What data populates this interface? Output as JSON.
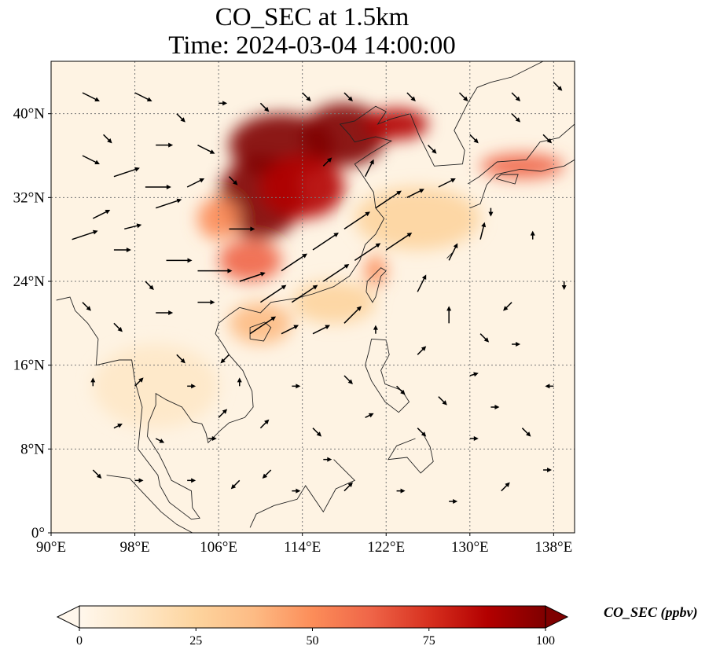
{
  "title": {
    "line1": "CO_SEC at 1.5km",
    "line2": "Time: 2024-03-04 14:00:00"
  },
  "map": {
    "extent": {
      "lon_min": 90,
      "lon_max": 140,
      "lat_min": 0,
      "lat_max": 45
    },
    "lon_ticks": [
      {
        "value": 90,
        "label": "90°E"
      },
      {
        "value": 98,
        "label": "98°E"
      },
      {
        "value": 106,
        "label": "106°E"
      },
      {
        "value": 114,
        "label": "114°E"
      },
      {
        "value": 122,
        "label": "122°E"
      },
      {
        "value": 130,
        "label": "130°E"
      },
      {
        "value": 138,
        "label": "138°E"
      }
    ],
    "lat_ticks": [
      {
        "value": 0,
        "label": "0°"
      },
      {
        "value": 8,
        "label": "8°N"
      },
      {
        "value": 16,
        "label": "16°N"
      },
      {
        "value": 24,
        "label": "24°N"
      },
      {
        "value": 32,
        "label": "32°N"
      },
      {
        "value": 40,
        "label": "40°N"
      }
    ],
    "gridlines": true,
    "field": "CO_SEC",
    "plumes": [
      {
        "lon": 112,
        "lat": 37,
        "value": 100,
        "spread_lon": 5,
        "spread_lat": 3
      },
      {
        "lon": 118,
        "lat": 38,
        "value": 100,
        "spread_lon": 4,
        "spread_lat": 3
      },
      {
        "lon": 110,
        "lat": 32,
        "value": 95,
        "spread_lon": 4,
        "spread_lat": 4
      },
      {
        "lon": 114,
        "lat": 33,
        "value": 90,
        "spread_lon": 4,
        "spread_lat": 3
      },
      {
        "lon": 123,
        "lat": 39,
        "value": 85,
        "spread_lon": 3,
        "spread_lat": 1.5
      },
      {
        "lon": 106,
        "lat": 30,
        "value": 55,
        "spread_lon": 2,
        "spread_lat": 2
      },
      {
        "lon": 109,
        "lat": 26,
        "value": 60,
        "spread_lon": 3,
        "spread_lat": 2
      },
      {
        "lon": 110,
        "lat": 20,
        "value": 40,
        "spread_lon": 3,
        "spread_lat": 2
      },
      {
        "lon": 135,
        "lat": 35,
        "value": 65,
        "spread_lon": 4,
        "spread_lat": 1.2
      },
      {
        "lon": 121,
        "lat": 25,
        "value": 50,
        "spread_lon": 1,
        "spread_lat": 1.5
      },
      {
        "lon": 125,
        "lat": 30,
        "value": 25,
        "spread_lon": 6,
        "spread_lat": 3
      },
      {
        "lon": 100,
        "lat": 14,
        "value": 12,
        "spread_lon": 6,
        "spread_lat": 4
      },
      {
        "lon": 117,
        "lat": 22,
        "value": 22,
        "spread_lon": 4,
        "spread_lat": 2
      }
    ],
    "wind_vectors": [
      [
        93,
        36,
        2,
        -1
      ],
      [
        96,
        34,
        3,
        1
      ],
      [
        99,
        33,
        3,
        0
      ],
      [
        100,
        31,
        3,
        1
      ],
      [
        94,
        30,
        2,
        1
      ],
      [
        97,
        29,
        2,
        0.5
      ],
      [
        92,
        28,
        3,
        1
      ],
      [
        96,
        27,
        2,
        0
      ],
      [
        101,
        26,
        3,
        0
      ],
      [
        104,
        25,
        4,
        0
      ],
      [
        108,
        24,
        3,
        1
      ],
      [
        112,
        25,
        3,
        2
      ],
      [
        115,
        27,
        3,
        2
      ],
      [
        118,
        29,
        3,
        2
      ],
      [
        121,
        31,
        3,
        2
      ],
      [
        124,
        32,
        2,
        1
      ],
      [
        127,
        33,
        2,
        1
      ],
      [
        110,
        22,
        3,
        2
      ],
      [
        113,
        22,
        3,
        2
      ],
      [
        116,
        24,
        3,
        2
      ],
      [
        119,
        26,
        3,
        2
      ],
      [
        122,
        27,
        3,
        2
      ],
      [
        109,
        19,
        3,
        2
      ],
      [
        112,
        19,
        2,
        1
      ],
      [
        115,
        19,
        2,
        1
      ],
      [
        118,
        20,
        2,
        2
      ],
      [
        125,
        23,
        1,
        2
      ],
      [
        128,
        26,
        1,
        2
      ],
      [
        131,
        28,
        0.5,
        2
      ],
      [
        128,
        20,
        0,
        2
      ],
      [
        131,
        19,
        1,
        -1
      ],
      [
        134,
        18,
        1,
        0
      ],
      [
        130,
        15,
        1,
        0.3
      ],
      [
        125,
        17,
        1,
        1
      ],
      [
        121,
        19,
        0,
        1
      ],
      [
        123,
        14,
        1,
        -1
      ],
      [
        118,
        15,
        1,
        -1
      ],
      [
        113,
        14,
        1,
        0
      ],
      [
        108,
        14,
        0,
        1
      ],
      [
        103,
        14,
        1,
        0
      ],
      [
        98,
        14,
        1,
        1
      ],
      [
        94,
        14,
        0,
        1
      ],
      [
        96,
        20,
        1,
        -1
      ],
      [
        100,
        21,
        2,
        0
      ],
      [
        104,
        22,
        2,
        0
      ],
      [
        107,
        17,
        -1,
        -1
      ],
      [
        102,
        17,
        1,
        -1
      ],
      [
        96,
        10,
        1,
        0.5
      ],
      [
        100,
        9,
        1,
        -0.5
      ],
      [
        105,
        9,
        1,
        0
      ],
      [
        110,
        10,
        1,
        1
      ],
      [
        115,
        10,
        1,
        -1
      ],
      [
        120,
        11,
        1,
        0.5
      ],
      [
        125,
        10,
        1,
        -1
      ],
      [
        130,
        9,
        1,
        0
      ],
      [
        135,
        10,
        1,
        -1
      ],
      [
        138,
        14,
        -1,
        0
      ],
      [
        94,
        6,
        1,
        -1
      ],
      [
        98,
        5,
        1,
        0
      ],
      [
        103,
        5,
        1,
        0
      ],
      [
        108,
        5,
        -1,
        -1
      ],
      [
        113,
        4,
        1,
        0
      ],
      [
        118,
        4,
        1,
        1
      ],
      [
        123,
        4,
        1,
        0
      ],
      [
        128,
        3,
        1,
        0
      ],
      [
        133,
        4,
        1,
        1
      ],
      [
        137,
        6,
        1,
        0
      ],
      [
        93,
        42,
        2,
        -1
      ],
      [
        98,
        42,
        2,
        -1
      ],
      [
        102,
        40,
        1,
        -1
      ],
      [
        106,
        41,
        1,
        0
      ],
      [
        110,
        41,
        1,
        -1
      ],
      [
        114,
        42,
        1,
        -1
      ],
      [
        118,
        42,
        1,
        -1
      ],
      [
        124,
        42,
        1,
        -1
      ],
      [
        129,
        42,
        1,
        -1
      ],
      [
        134,
        42,
        1,
        -1
      ],
      [
        138,
        43,
        1,
        -1
      ],
      [
        95,
        38,
        1,
        -1
      ],
      [
        100,
        37,
        2,
        0
      ],
      [
        104,
        37,
        2,
        -1
      ],
      [
        107,
        34,
        1,
        -1
      ],
      [
        103,
        33,
        2,
        1
      ],
      [
        99,
        24,
        1,
        -1
      ],
      [
        93,
        22,
        1,
        -1
      ],
      [
        107,
        29,
        3,
        0
      ],
      [
        116,
        35,
        1,
        1
      ],
      [
        120,
        34,
        1,
        2
      ],
      [
        126,
        37,
        1,
        -1
      ],
      [
        130,
        38,
        1,
        -1
      ],
      [
        134,
        40,
        1,
        -1
      ],
      [
        137,
        38,
        1,
        -1
      ],
      [
        132,
        31,
        0,
        -1
      ],
      [
        136,
        28,
        0,
        1
      ],
      [
        139,
        24,
        0,
        -1
      ],
      [
        134,
        22,
        -1,
        -1
      ],
      [
        127,
        13,
        1,
        -1
      ],
      [
        132,
        12,
        1,
        0
      ],
      [
        106,
        11,
        1,
        1
      ],
      [
        111,
        6,
        -1,
        -1
      ],
      [
        116,
        7,
        1,
        0
      ]
    ]
  },
  "colorbar": {
    "label": "CO_SEC (ppbv)",
    "min": 0,
    "max": 100,
    "ticks": [
      {
        "value": 0,
        "label": "0"
      },
      {
        "value": 25,
        "label": "25"
      },
      {
        "value": 50,
        "label": "50"
      },
      {
        "value": 75,
        "label": "75"
      },
      {
        "value": 100,
        "label": "100"
      }
    ],
    "colormap": "OrRd",
    "colors": [
      "#fff7ec",
      "#fee8c8",
      "#fdd49e",
      "#fdbb84",
      "#fc8d59",
      "#ef6548",
      "#d7301f",
      "#b30000",
      "#7f0000"
    ]
  }
}
